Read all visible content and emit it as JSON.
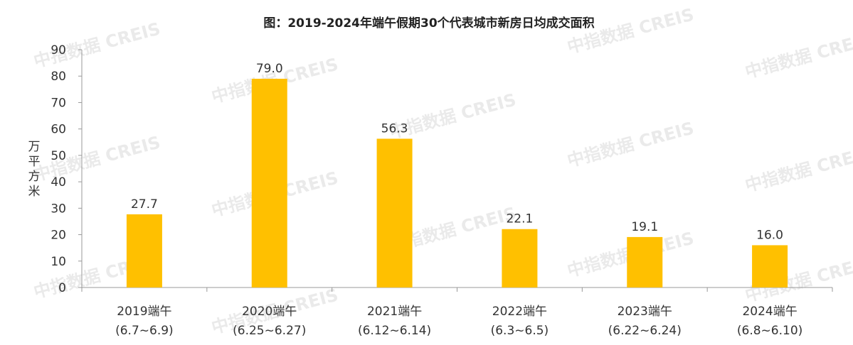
{
  "chart_data": {
    "type": "bar",
    "title": "图：2019-2024年端午假期30个代表城市新房日均成交面积",
    "ylabel": "万平方米",
    "xlabel": "",
    "ylim": [
      0,
      90
    ],
    "yticks": [
      0,
      10,
      20,
      30,
      40,
      50,
      60,
      70,
      80,
      90
    ],
    "grid": false,
    "legend": "none",
    "bar_color": "#FFC000",
    "categories": [
      {
        "line1": "2019端午",
        "line2": "(6.7~6.9)"
      },
      {
        "line1": "2020端午",
        "line2": "(6.25~6.27)"
      },
      {
        "line1": "2021端午",
        "line2": "(6.12~6.14)"
      },
      {
        "line1": "2022端午",
        "line2": "(6.3~6.5)"
      },
      {
        "line1": "2023端午",
        "line2": "(6.22~6.24)"
      },
      {
        "line1": "2024端午",
        "line2": "(6.8~6.10)"
      }
    ],
    "values": [
      27.7,
      79.0,
      56.3,
      22.1,
      19.1,
      16.0
    ],
    "value_labels": [
      "27.7",
      "79.0",
      "56.3",
      "22.1",
      "19.1",
      "16.0"
    ]
  },
  "watermark": "中指数据 CREIS"
}
